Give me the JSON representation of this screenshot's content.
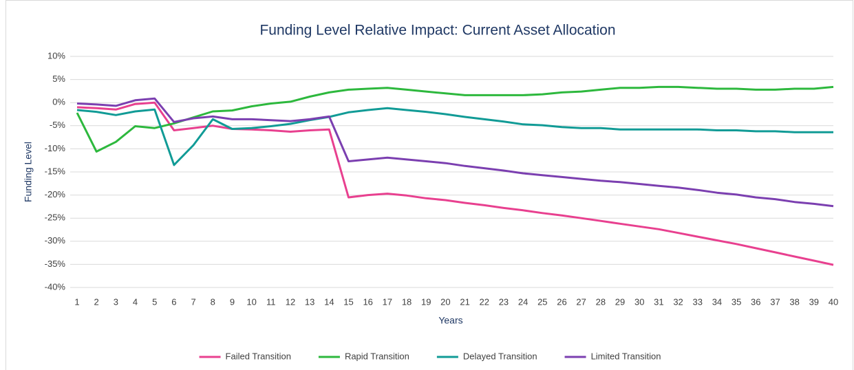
{
  "chart_data": {
    "type": "line",
    "title": "Funding Level Relative Impact: Current Asset Allocation",
    "x_label": "Years",
    "y_label": "Funding Level",
    "x": [
      1,
      2,
      3,
      4,
      5,
      6,
      7,
      8,
      9,
      10,
      11,
      12,
      13,
      14,
      15,
      16,
      17,
      18,
      19,
      20,
      21,
      22,
      23,
      24,
      25,
      26,
      27,
      28,
      29,
      30,
      31,
      32,
      33,
      34,
      35,
      36,
      37,
      38,
      39,
      40
    ],
    "xlim": [
      1,
      40
    ],
    "xticks": [
      1,
      2,
      3,
      4,
      5,
      6,
      7,
      8,
      9,
      10,
      11,
      12,
      13,
      14,
      15,
      16,
      17,
      18,
      19,
      20,
      21,
      22,
      23,
      24,
      25,
      26,
      27,
      28,
      29,
      30,
      31,
      32,
      33,
      34,
      35,
      36,
      37,
      38,
      39,
      40
    ],
    "ylim": [
      -40,
      10
    ],
    "yticks": [
      {
        "value": -40,
        "label": "-40%"
      },
      {
        "value": -35,
        "label": "-35%"
      },
      {
        "value": -30,
        "label": "-30%"
      },
      {
        "value": -25,
        "label": "-25%"
      },
      {
        "value": -20,
        "label": "-20%"
      },
      {
        "value": -15,
        "label": "-15%"
      },
      {
        "value": -10,
        "label": "-10%"
      },
      {
        "value": -5,
        "label": "-5%"
      },
      {
        "value": 0,
        "label": "0%"
      },
      {
        "value": 5,
        "label": "5%"
      },
      {
        "value": 10,
        "label": "10%"
      }
    ],
    "grid": true,
    "legend": "bottom",
    "series": [
      {
        "name": "Failed Transition",
        "color": "#e8408f",
        "values": [
          -1,
          -1.2,
          -1.5,
          -0.3,
          0,
          -6,
          -5.5,
          -5,
          -5.7,
          -5.8,
          -6,
          -6.3,
          -6,
          -5.8,
          -20.5,
          -20,
          -19.7,
          -20.1,
          -20.7,
          -21.1,
          -21.7,
          -22.2,
          -22.8,
          -23.3,
          -23.9,
          -24.4,
          -25,
          -25.6,
          -26.2,
          -26.8,
          -27.4,
          -28.2,
          -29,
          -29.8,
          -30.6,
          -31.5,
          -32.4,
          -33.3,
          -34.2,
          -35.1
        ]
      },
      {
        "name": "Rapid Transition",
        "color": "#2db83d",
        "values": [
          -2.2,
          -10.6,
          -8.5,
          -5.1,
          -5.5,
          -4.5,
          -3.2,
          -1.9,
          -1.7,
          -0.8,
          -0.2,
          0.2,
          1.3,
          2.2,
          2.8,
          3,
          3.2,
          2.8,
          2.4,
          2,
          1.6,
          1.6,
          1.6,
          1.6,
          1.8,
          2.2,
          2.4,
          2.8,
          3.2,
          3.2,
          3.4,
          3.4,
          3.2,
          3,
          3,
          2.8,
          2.8,
          3,
          3,
          3.4
        ]
      },
      {
        "name": "Delayed Transition",
        "color": "#119b96",
        "values": [
          -1.6,
          -2,
          -2.7,
          -1.9,
          -1.5,
          -13.5,
          -9.2,
          -3.6,
          -5.7,
          -5.5,
          -5.1,
          -4.6,
          -3.8,
          -3.1,
          -2.1,
          -1.6,
          -1.2,
          -1.6,
          -2,
          -2.5,
          -3.1,
          -3.6,
          -4.1,
          -4.7,
          -4.9,
          -5.3,
          -5.5,
          -5.5,
          -5.8,
          -5.8,
          -5.8,
          -5.8,
          -5.8,
          -6,
          -6,
          -6.2,
          -6.2,
          -6.4,
          -6.4,
          -6.4
        ]
      },
      {
        "name": "Limited Transition",
        "color": "#7b3fb0",
        "values": [
          -0.2,
          -0.4,
          -0.7,
          0.5,
          0.9,
          -4.2,
          -3.4,
          -3,
          -3.6,
          -3.6,
          -3.8,
          -4,
          -3.6,
          -3,
          -12.7,
          -12.3,
          -11.9,
          -12.3,
          -12.7,
          -13.1,
          -13.7,
          -14.2,
          -14.7,
          -15.3,
          -15.7,
          -16.1,
          -16.5,
          -16.9,
          -17.2,
          -17.6,
          -18,
          -18.4,
          -18.9,
          -19.5,
          -19.9,
          -20.5,
          -20.9,
          -21.5,
          -21.9,
          -22.4
        ]
      }
    ]
  }
}
